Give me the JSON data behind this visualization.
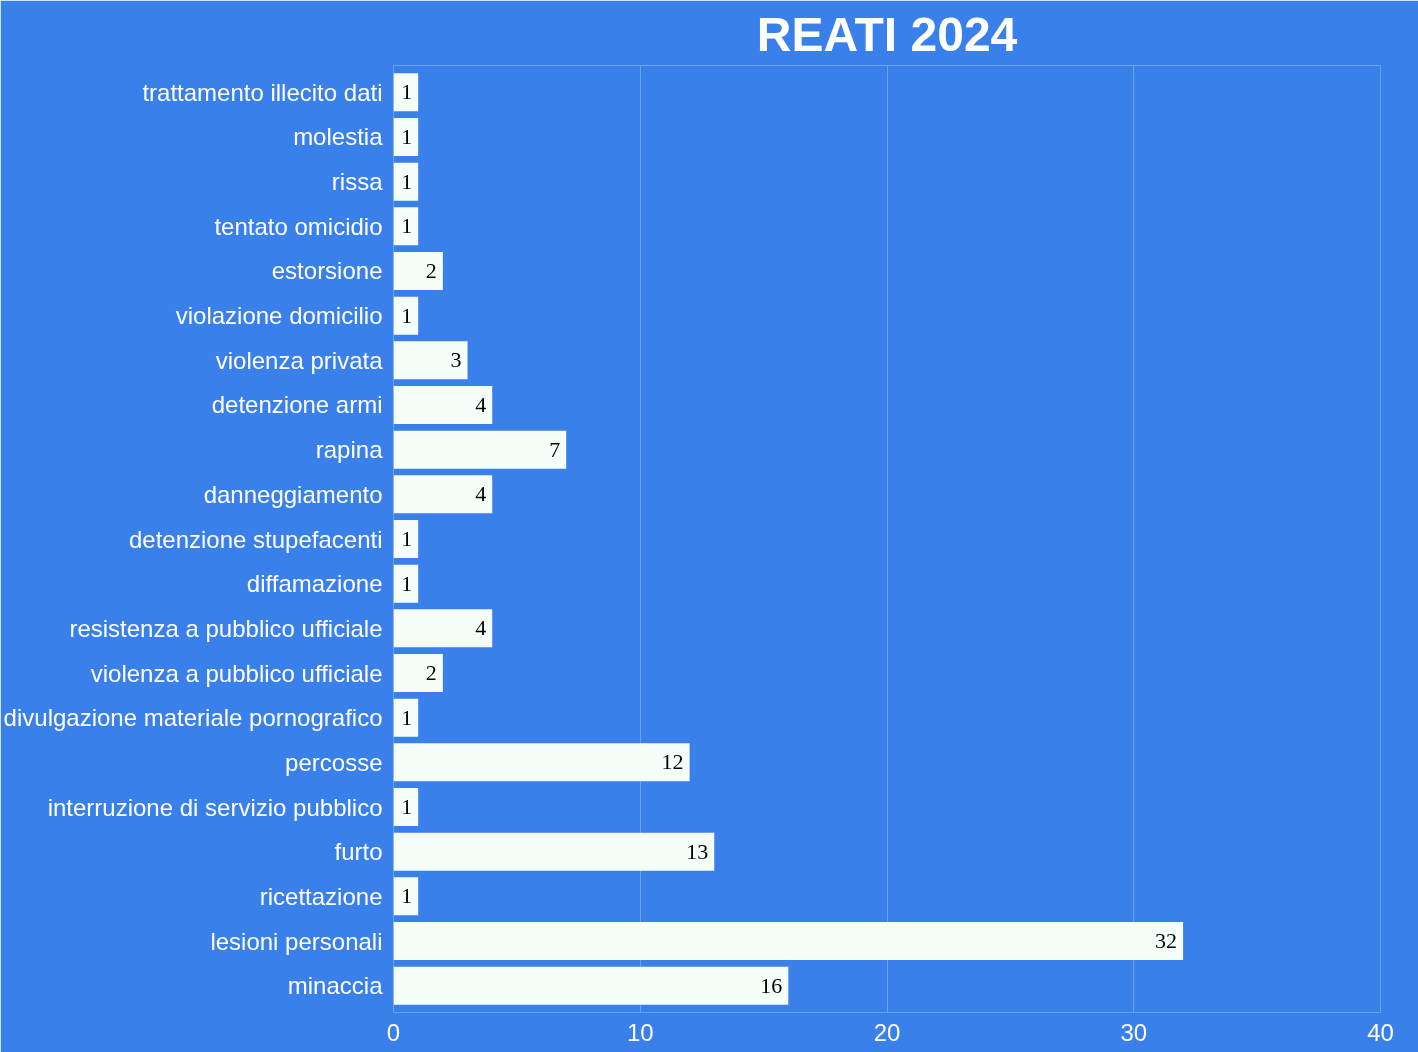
{
  "chart_data": {
    "type": "bar",
    "orientation": "horizontal",
    "title": "REATI 2024",
    "categories": [
      "trattamento illecito dati",
      "molestia",
      "rissa",
      "tentato omicidio",
      "estorsione",
      "violazione domicilio",
      "violenza privata",
      "detenzione armi",
      "rapina",
      "danneggiamento",
      "detenzione stupefacenti",
      "diffamazione",
      "resistenza a pubblico ufficiale",
      "violenza a pubblico ufficiale",
      "divulgazione materiale pornografico",
      "percosse",
      "interruzione di servizio pubblico",
      "furto",
      "ricettazione",
      "lesioni personali",
      "minaccia"
    ],
    "values": [
      1,
      1,
      1,
      1,
      2,
      1,
      3,
      4,
      7,
      4,
      1,
      1,
      4,
      2,
      1,
      12,
      1,
      13,
      1,
      32,
      16
    ],
    "color": "#f5fff8",
    "data_labels": true,
    "grid": "x",
    "xlim": [
      0,
      40
    ],
    "xticks": [
      0,
      10,
      20,
      30,
      40
    ]
  }
}
